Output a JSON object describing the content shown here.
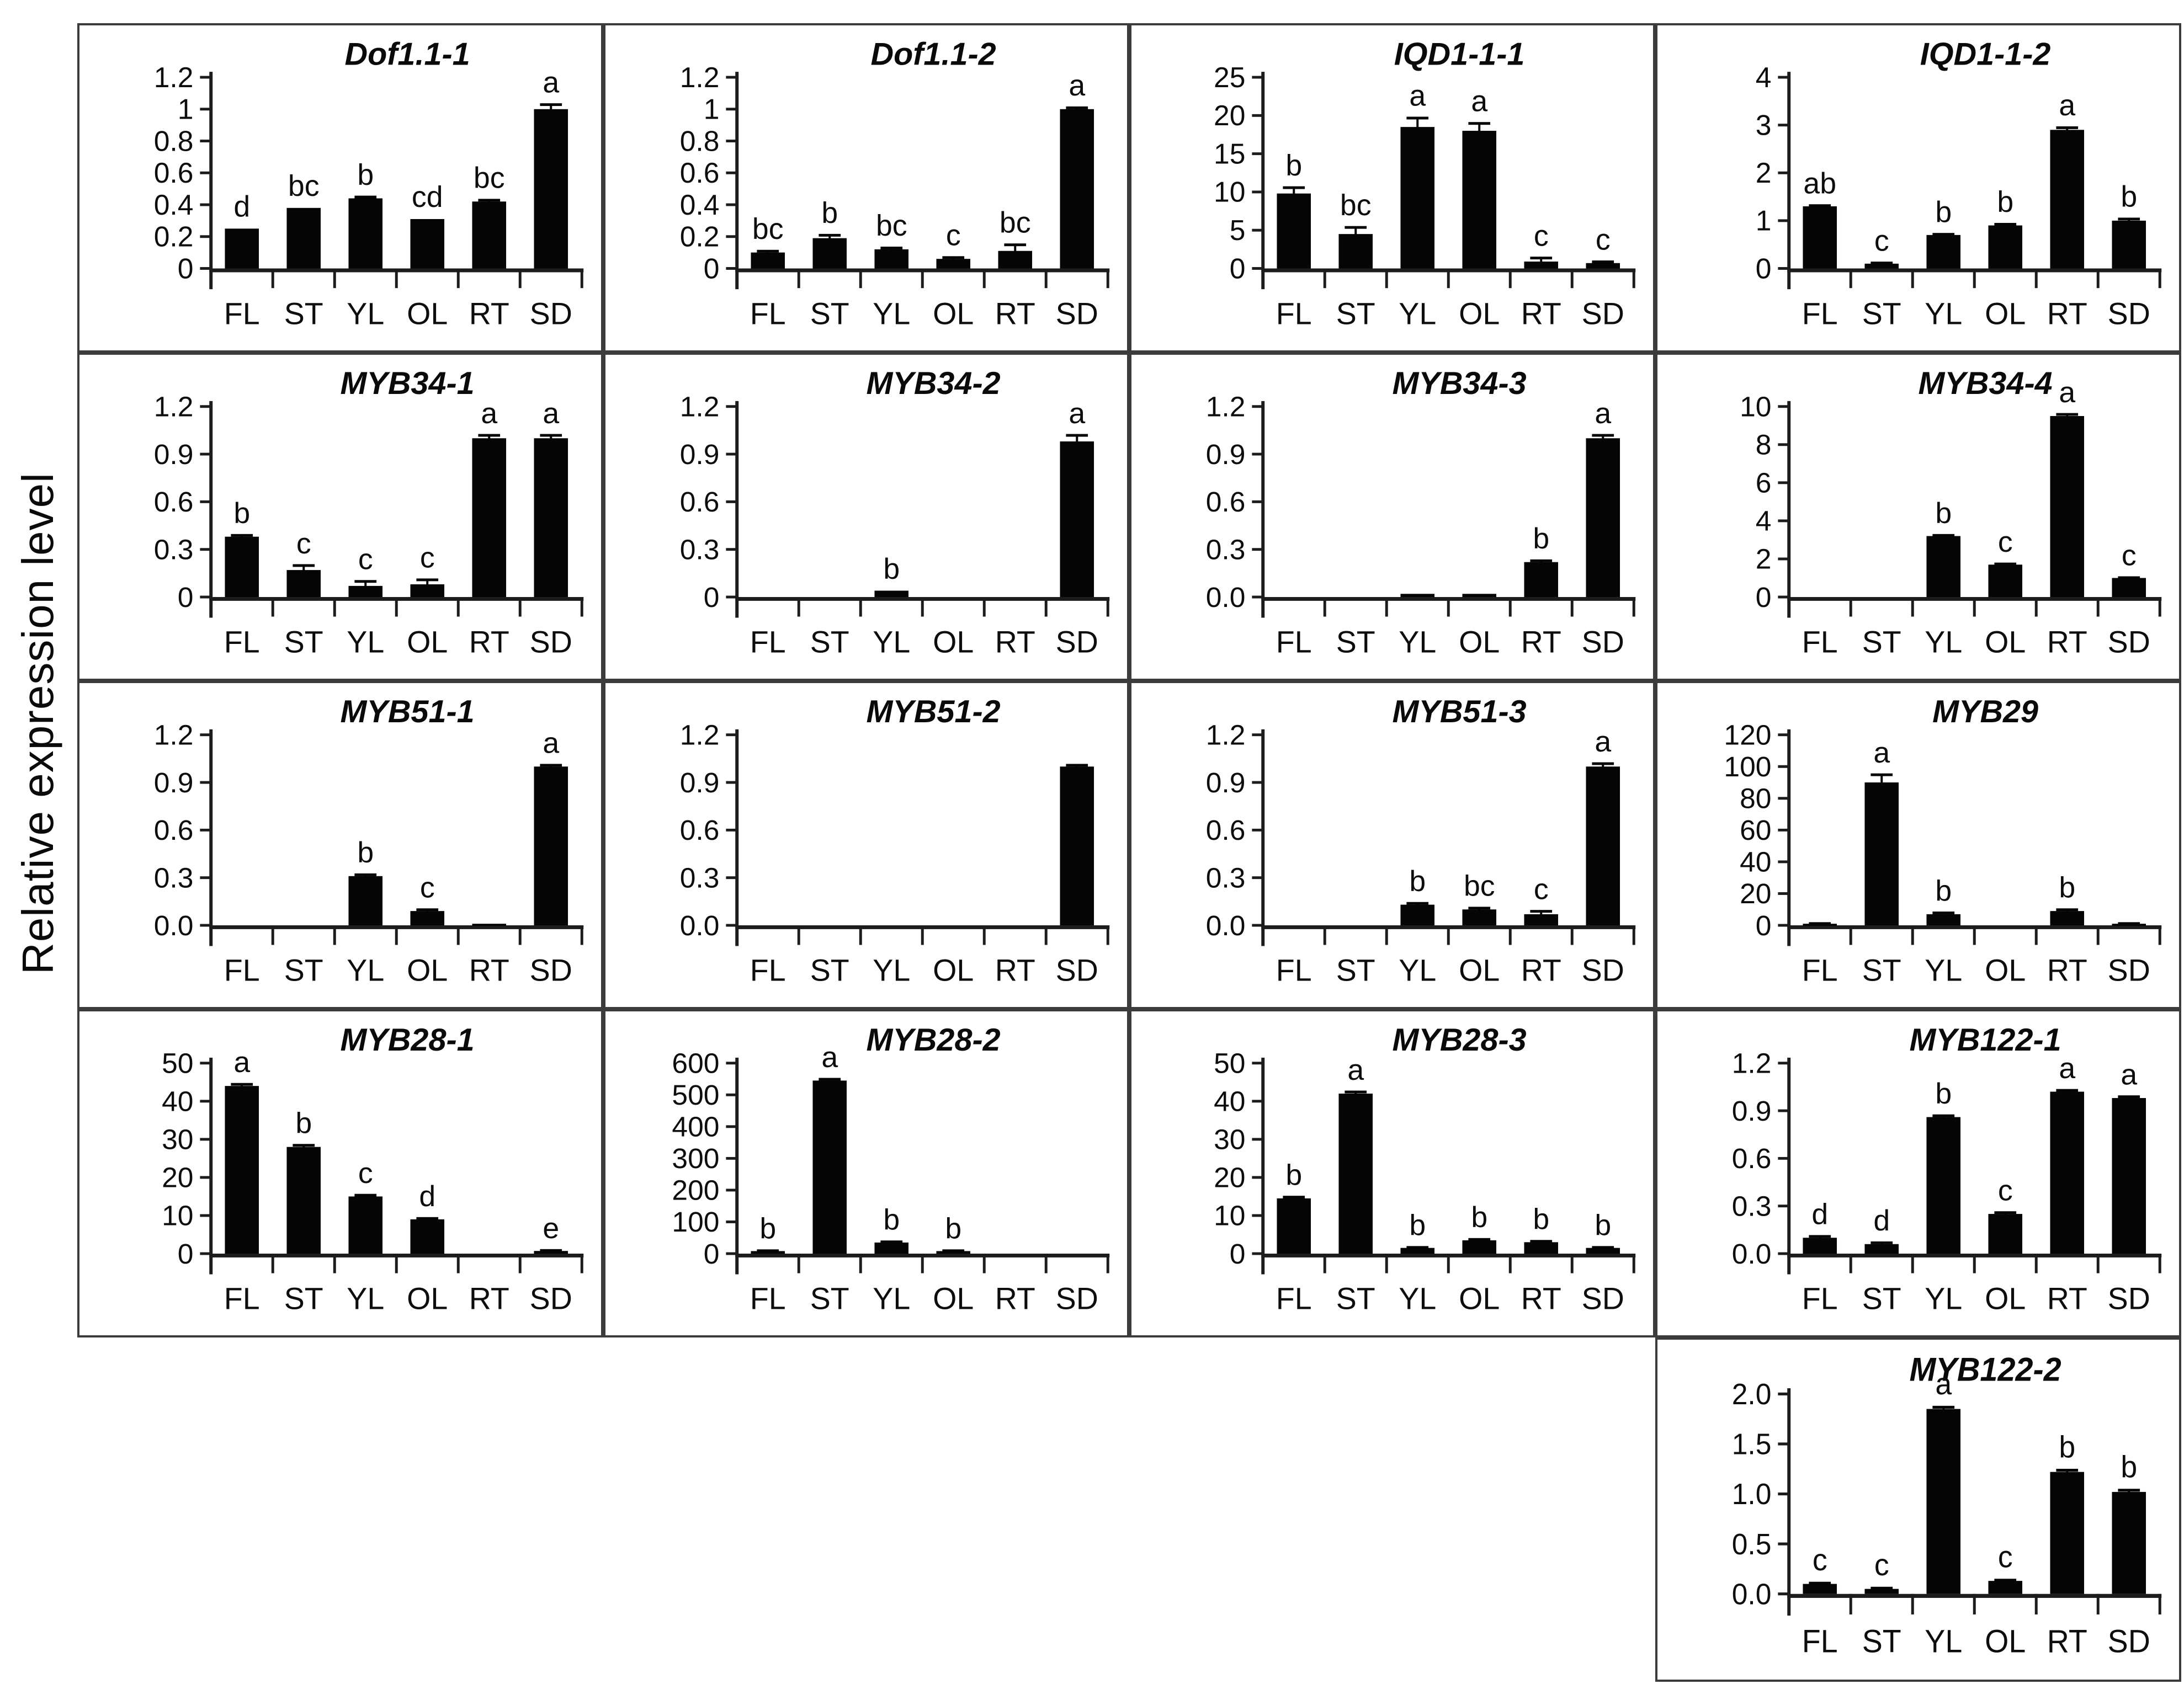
{
  "figure": {
    "ylabel": "Relative expression level",
    "bar_color": "#050505",
    "border_color": "#3c3c3c",
    "layout": {
      "rows": 5,
      "cols": 4
    }
  },
  "categories": [
    "FL",
    "ST",
    "YL",
    "OL",
    "RT",
    "SD"
  ],
  "chart_data": [
    {
      "type": "bar",
      "title": "Dof1.1-1",
      "grid": {
        "row": 1,
        "col": 1
      },
      "ylim": [
        0,
        1.2
      ],
      "ytick_labels": [
        "0",
        "0.2",
        "0.4",
        "0.6",
        "0.8",
        "1",
        "1.2"
      ],
      "values": [
        0.25,
        0.38,
        0.44,
        0.31,
        0.42,
        1.0
      ],
      "errors": [
        0,
        0,
        0.01,
        0,
        0.01,
        0.03
      ],
      "letters": [
        "d",
        "bc",
        "b",
        "cd",
        "bc",
        "a"
      ]
    },
    {
      "type": "bar",
      "title": "Dof1.1-2",
      "grid": {
        "row": 1,
        "col": 2
      },
      "ylim": [
        0,
        1.2
      ],
      "ytick_labels": [
        "0",
        "0.2",
        "0.4",
        "0.6",
        "0.8",
        "1",
        "1.2"
      ],
      "values": [
        0.1,
        0.19,
        0.12,
        0.06,
        0.11,
        1.0
      ],
      "errors": [
        0.01,
        0.02,
        0.01,
        0.01,
        0.04,
        0.01
      ],
      "letters": [
        "bc",
        "b",
        "bc",
        "c",
        "bc",
        "a"
      ]
    },
    {
      "type": "bar",
      "title": "IQD1-1-1",
      "grid": {
        "row": 1,
        "col": 3
      },
      "ylim": [
        0,
        25
      ],
      "ytick_labels": [
        "0",
        "5",
        "10",
        "15",
        "20",
        "25"
      ],
      "values": [
        9.8,
        4.5,
        18.5,
        18.0,
        0.9,
        0.7
      ],
      "errors": [
        0.8,
        0.9,
        1.2,
        1.0,
        0.5,
        0.2
      ],
      "letters": [
        "b",
        "bc",
        "a",
        "a",
        "c",
        "c"
      ]
    },
    {
      "type": "bar",
      "title": "IQD1-1-2",
      "grid": {
        "row": 1,
        "col": 4
      },
      "ylim": [
        0,
        4
      ],
      "ytick_labels": [
        "0",
        "1",
        "2",
        "3",
        "4"
      ],
      "values": [
        1.3,
        0.1,
        0.7,
        0.9,
        2.9,
        1.0
      ],
      "errors": [
        0.02,
        0.02,
        0.02,
        0.03,
        0.05,
        0.04
      ],
      "letters": [
        "ab",
        "c",
        "b",
        "b",
        "a",
        "b"
      ]
    },
    {
      "type": "bar",
      "title": "MYB34-1",
      "grid": {
        "row": 2,
        "col": 1
      },
      "ylim": [
        0,
        1.2
      ],
      "ytick_labels": [
        "0",
        "0.3",
        "0.6",
        "0.9",
        "1.2"
      ],
      "values": [
        0.38,
        0.17,
        0.07,
        0.08,
        1.0,
        1.0
      ],
      "errors": [
        0.01,
        0.03,
        0.03,
        0.03,
        0.02,
        0.02
      ],
      "letters": [
        "b",
        "c",
        "c",
        "c",
        "a",
        "a"
      ]
    },
    {
      "type": "bar",
      "title": "MYB34-2",
      "grid": {
        "row": 2,
        "col": 2
      },
      "ylim": [
        0,
        1.2
      ],
      "ytick_labels": [
        "0",
        "0.3",
        "0.6",
        "0.9",
        "1.2"
      ],
      "values": [
        0,
        0,
        0.04,
        0,
        0,
        0.98
      ],
      "errors": [
        0,
        0,
        0,
        0,
        0,
        0.04
      ],
      "letters": [
        "",
        "",
        "b",
        "",
        "",
        "a"
      ]
    },
    {
      "type": "bar",
      "title": "MYB34-3",
      "grid": {
        "row": 2,
        "col": 3
      },
      "ylim": [
        0,
        1.2
      ],
      "ytick_labels": [
        "0.0",
        "0.3",
        "0.6",
        "0.9",
        "1.2"
      ],
      "values": [
        0,
        0,
        0.02,
        0.02,
        0.22,
        1.0
      ],
      "errors": [
        0,
        0,
        0,
        0,
        0.01,
        0.02
      ],
      "letters": [
        "",
        "",
        "",
        "",
        "b",
        "a"
      ]
    },
    {
      "type": "bar",
      "title": "MYB34-4",
      "grid": {
        "row": 2,
        "col": 4
      },
      "ylim": [
        0,
        10
      ],
      "ytick_labels": [
        "0",
        "2",
        "4",
        "6",
        "8",
        "10"
      ],
      "values": [
        0,
        0,
        3.2,
        1.7,
        9.5,
        1.0
      ],
      "errors": [
        0,
        0,
        0.05,
        0.05,
        0.1,
        0.03
      ],
      "letters": [
        "",
        "",
        "b",
        "c",
        "a",
        "c"
      ]
    },
    {
      "type": "bar",
      "title": "MYB51-1",
      "grid": {
        "row": 3,
        "col": 1
      },
      "ylim": [
        0,
        1.2
      ],
      "ytick_labels": [
        "0.0",
        "0.3",
        "0.6",
        "0.9",
        "1.2"
      ],
      "values": [
        0,
        0,
        0.31,
        0.09,
        0.01,
        1.0
      ],
      "errors": [
        0,
        0,
        0.01,
        0.01,
        0,
        0.01
      ],
      "letters": [
        "",
        "",
        "b",
        "c",
        "",
        "a"
      ]
    },
    {
      "type": "bar",
      "title": "MYB51-2",
      "grid": {
        "row": 3,
        "col": 2
      },
      "ylim": [
        0,
        1.2
      ],
      "ytick_labels": [
        "0.0",
        "0.3",
        "0.6",
        "0.9",
        "1.2"
      ],
      "values": [
        0,
        0,
        0,
        0,
        0,
        1.0
      ],
      "errors": [
        0,
        0,
        0,
        0,
        0,
        0.01
      ],
      "letters": [
        "",
        "",
        "",
        "",
        "",
        ""
      ]
    },
    {
      "type": "bar",
      "title": "MYB51-3",
      "grid": {
        "row": 3,
        "col": 3
      },
      "ylim": [
        0,
        1.2
      ],
      "ytick_labels": [
        "0.0",
        "0.3",
        "0.6",
        "0.9",
        "1.2"
      ],
      "values": [
        0,
        0,
        0.13,
        0.1,
        0.07,
        1.0
      ],
      "errors": [
        0,
        0,
        0.01,
        0.01,
        0.02,
        0.02
      ],
      "letters": [
        "",
        "",
        "b",
        "bc",
        "c",
        "a"
      ]
    },
    {
      "type": "bar",
      "title": "MYB29",
      "grid": {
        "row": 3,
        "col": 4
      },
      "ylim": [
        0,
        120
      ],
      "ytick_labels": [
        "0",
        "20",
        "40",
        "60",
        "80",
        "100",
        "120"
      ],
      "values": [
        1,
        90,
        7,
        0,
        9,
        1
      ],
      "errors": [
        0.3,
        5,
        1,
        0,
        1,
        0.3
      ],
      "letters": [
        "",
        "a",
        "b",
        "",
        "b",
        ""
      ]
    },
    {
      "type": "bar",
      "title": "MYB28-1",
      "grid": {
        "row": 4,
        "col": 1
      },
      "ylim": [
        0,
        50
      ],
      "ytick_labels": [
        "0",
        "10",
        "20",
        "30",
        "40",
        "50"
      ],
      "values": [
        44,
        28,
        15,
        9,
        0,
        0.7
      ],
      "errors": [
        0.5,
        0.5,
        0.4,
        0.3,
        0,
        0.2
      ],
      "letters": [
        "a",
        "b",
        "c",
        "d",
        "",
        "e"
      ]
    },
    {
      "type": "bar",
      "title": "MYB28-2",
      "grid": {
        "row": 4,
        "col": 2
      },
      "ylim": [
        0,
        600
      ],
      "ytick_labels": [
        "0",
        "100",
        "200",
        "300",
        "400",
        "500",
        "600"
      ],
      "values": [
        8,
        545,
        35,
        8,
        0,
        0
      ],
      "errors": [
        2,
        5,
        3,
        2,
        0,
        0
      ],
      "letters": [
        "b",
        "a",
        "b",
        "b",
        "",
        ""
      ]
    },
    {
      "type": "bar",
      "title": "MYB28-3",
      "grid": {
        "row": 4,
        "col": 3
      },
      "ylim": [
        0,
        50
      ],
      "ytick_labels": [
        "0",
        "10",
        "20",
        "30",
        "40",
        "50"
      ],
      "values": [
        14.5,
        42,
        1.5,
        3.5,
        3,
        1.5
      ],
      "errors": [
        0.4,
        0.5,
        0.2,
        0.3,
        0.3,
        0.2
      ],
      "letters": [
        "b",
        "a",
        "b",
        "b",
        "b",
        "b"
      ]
    },
    {
      "type": "bar",
      "title": "MYB122-1",
      "grid": {
        "row": 4,
        "col": 4
      },
      "ylim": [
        0,
        1.2
      ],
      "ytick_labels": [
        "0.0",
        "0.3",
        "0.6",
        "0.9",
        "1.2"
      ],
      "values": [
        0.1,
        0.06,
        0.86,
        0.25,
        1.02,
        0.98
      ],
      "errors": [
        0.01,
        0.01,
        0.01,
        0.01,
        0.01,
        0.01
      ],
      "letters": [
        "d",
        "d",
        "b",
        "c",
        "a",
        "a"
      ]
    },
    {
      "type": "bar",
      "title": "MYB122-2",
      "grid": {
        "row": 5,
        "col": 4
      },
      "ylim": [
        0,
        2.0
      ],
      "ytick_labels": [
        "0.0",
        "0.5",
        "1.0",
        "1.5",
        "2.0"
      ],
      "values": [
        0.1,
        0.05,
        1.85,
        0.13,
        1.22,
        1.02
      ],
      "errors": [
        0.01,
        0.01,
        0.02,
        0.01,
        0.02,
        0.02
      ],
      "letters": [
        "c",
        "c",
        "a",
        "c",
        "b",
        "b"
      ]
    }
  ]
}
